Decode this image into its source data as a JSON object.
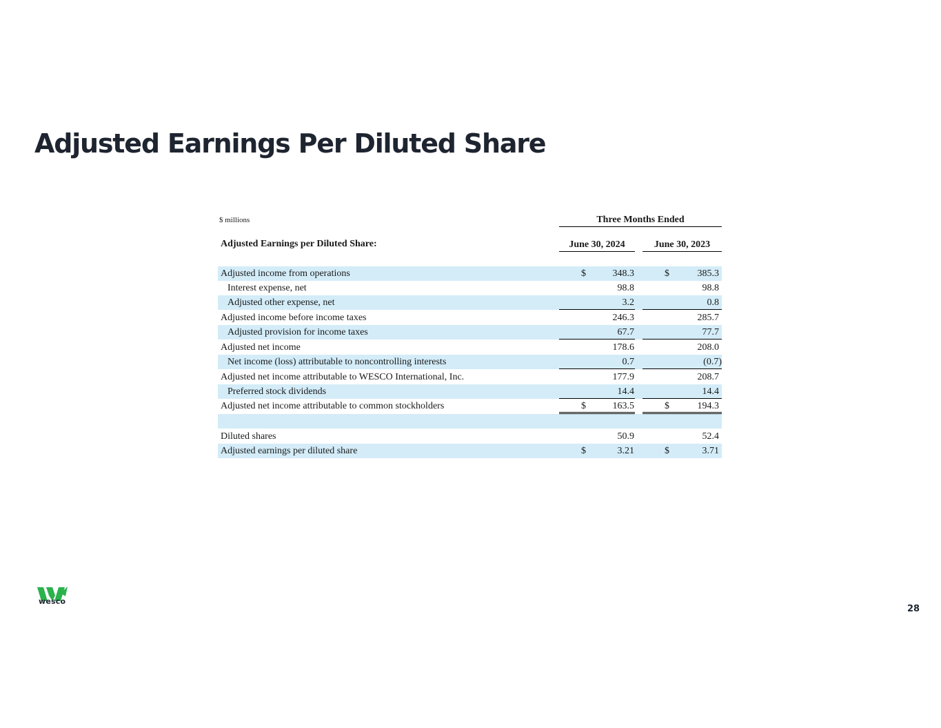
{
  "title": "Adjusted Earnings Per Diluted Share",
  "units_note": "$ millions",
  "period_header": "Three Months Ended",
  "section_heading": "Adjusted Earnings per Diluted Share:",
  "columns": [
    "June 30, 2024",
    "June 30, 2023"
  ],
  "rows": [
    {
      "label": "Adjusted income from operations",
      "cur": "$",
      "a": "348.3",
      "b": "385.3"
    },
    {
      "label": "Interest expense, net",
      "cur": "",
      "a": "98.8",
      "b": "98.8"
    },
    {
      "label": "Adjusted other expense, net",
      "cur": "",
      "a": "3.2",
      "b": "0.8"
    },
    {
      "label": "Adjusted income before income taxes",
      "cur": "",
      "a": "246.3",
      "b": "285.7"
    },
    {
      "label": "Adjusted provision for income taxes",
      "cur": "",
      "a": "67.7",
      "b": "77.7"
    },
    {
      "label": "Adjusted net income",
      "cur": "",
      "a": "178.6",
      "b": "208.0"
    },
    {
      "label": "Net income (loss) attributable to noncontrolling interests",
      "cur": "",
      "a": "0.7",
      "b": "(0.7)"
    },
    {
      "label": "Adjusted net income attributable to WESCO International, Inc.",
      "cur": "",
      "a": "177.9",
      "b": "208.7"
    },
    {
      "label": "Preferred stock dividends",
      "cur": "",
      "a": "14.4",
      "b": "14.4"
    },
    {
      "label": "Adjusted net income attributable to common stockholders",
      "cur": "$",
      "a": "163.5",
      "b": "194.3"
    },
    {
      "label": "",
      "cur": "",
      "a": "",
      "b": ""
    },
    {
      "label": "Diluted shares",
      "cur": "",
      "a": "50.9",
      "b": "52.4"
    },
    {
      "label": "Adjusted earnings per diluted share",
      "cur": "$",
      "a": "3.21",
      "b": "3.71"
    }
  ],
  "currency_symbol": "$",
  "logo_text": "wesco",
  "logo_color": "#2bb24c",
  "page_number": "28"
}
